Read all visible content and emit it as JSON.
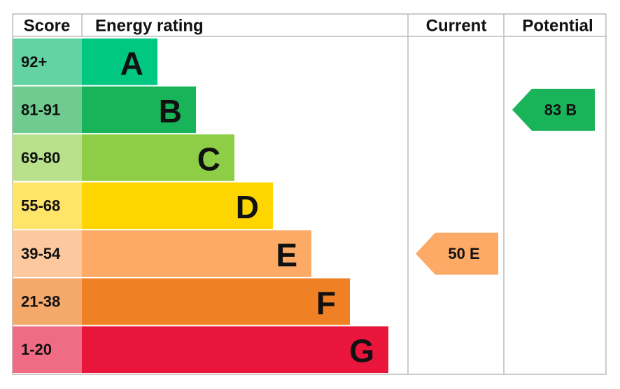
{
  "header": {
    "score": "Score",
    "rating": "Energy rating",
    "current": "Current",
    "potential": "Potential"
  },
  "rows": [
    {
      "score": "92+",
      "letter": "A",
      "color": "#00c781",
      "score_color": "#63d3a4"
    },
    {
      "score": "81-91",
      "letter": "B",
      "color": "#19b459",
      "score_color": "#6fcb8f"
    },
    {
      "score": "69-80",
      "letter": "C",
      "color": "#8dce46",
      "score_color": "#b9e18c"
    },
    {
      "score": "55-68",
      "letter": "D",
      "color": "#ffd500",
      "score_color": "#ffe46a"
    },
    {
      "score": "39-54",
      "letter": "E",
      "color": "#fcaa65",
      "score_color": "#fdc89d"
    },
    {
      "score": "21-38",
      "letter": "F",
      "color": "#ef8023",
      "score_color": "#f4a86a"
    },
    {
      "score": "1-20",
      "letter": "G",
      "color": "#e9153b",
      "score_color": "#f06c84"
    }
  ],
  "current": {
    "label": "50 E"
  },
  "potential": {
    "label": "83 B"
  }
}
